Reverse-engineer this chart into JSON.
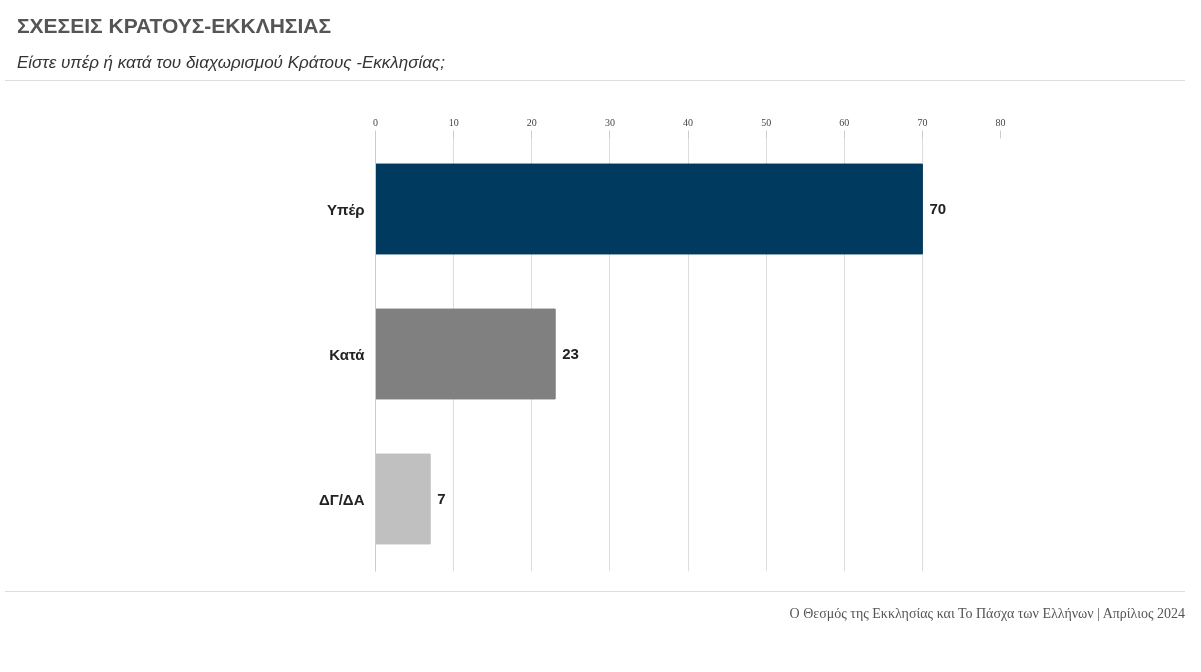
{
  "chart_data": {
    "type": "bar",
    "orientation": "horizontal",
    "title": "ΣΧΕΣΕΙΣ ΚΡΑΤΟΥΣ-ΕΚΚΛΗΣΙΑΣ",
    "subtitle": "Είστε υπέρ ή κατά του διαχωρισμού Κράτους -Εκκλησίας;",
    "categories": [
      "Υπέρ",
      "Κατά",
      "ΔΓ/ΔΑ"
    ],
    "values": [
      70,
      23,
      7
    ],
    "colors": [
      "#003a5f",
      "#808080",
      "#c0c0c0"
    ],
    "xlim": [
      0,
      80
    ],
    "xticks": [
      0,
      10,
      20,
      30,
      40,
      50,
      60,
      70,
      80
    ],
    "grid": "x",
    "data_labels": true,
    "annotations": [
      "Ο Θεσμός της Εκκλησίας και Το Πάσχα των Ελλήνων | Απρίλιος 2024"
    ]
  }
}
